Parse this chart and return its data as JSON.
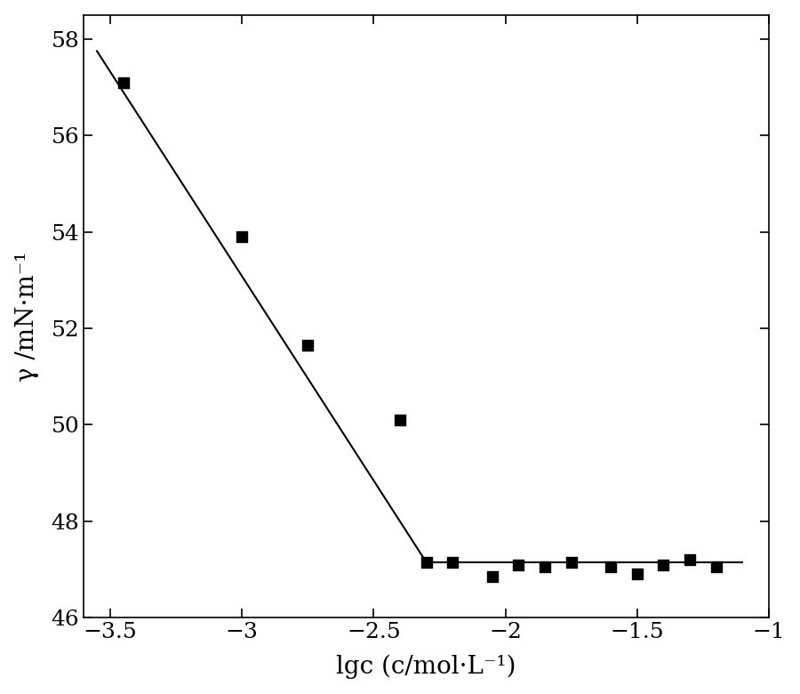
{
  "scatter_x": [
    -3.45,
    -3.0,
    -2.75,
    -2.4,
    -2.3,
    -2.2,
    -2.05,
    -1.95,
    -1.85,
    -1.75,
    -1.6,
    -1.5,
    -1.4,
    -1.3,
    -1.2
  ],
  "scatter_y": [
    57.1,
    53.9,
    51.65,
    50.1,
    47.15,
    47.15,
    46.85,
    47.1,
    47.05,
    47.15,
    47.05,
    46.9,
    47.1,
    47.2,
    47.05
  ],
  "line1_x": [
    -3.55,
    -2.3
  ],
  "line1_y": [
    57.75,
    47.15
  ],
  "line2_x": [
    -2.3,
    -1.1
  ],
  "line2_y": [
    47.15,
    47.15
  ],
  "xlim": [
    -3.6,
    -1.0
  ],
  "ylim": [
    46.0,
    58.5
  ],
  "xticks": [
    -3.5,
    -3.0,
    -2.5,
    -2.0,
    -1.5,
    -1.0
  ],
  "yticks": [
    46,
    48,
    50,
    52,
    54,
    56,
    58
  ],
  "xlabel": "lgc (c/mol·L⁻¹)",
  "ylabel": "γ /mN·m⁻¹",
  "background_color": "#ffffff",
  "line_color": "#000000",
  "marker_color": "#000000",
  "marker_size": 72,
  "line_width": 1.5,
  "tick_fontsize": 18,
  "label_fontsize": 20
}
